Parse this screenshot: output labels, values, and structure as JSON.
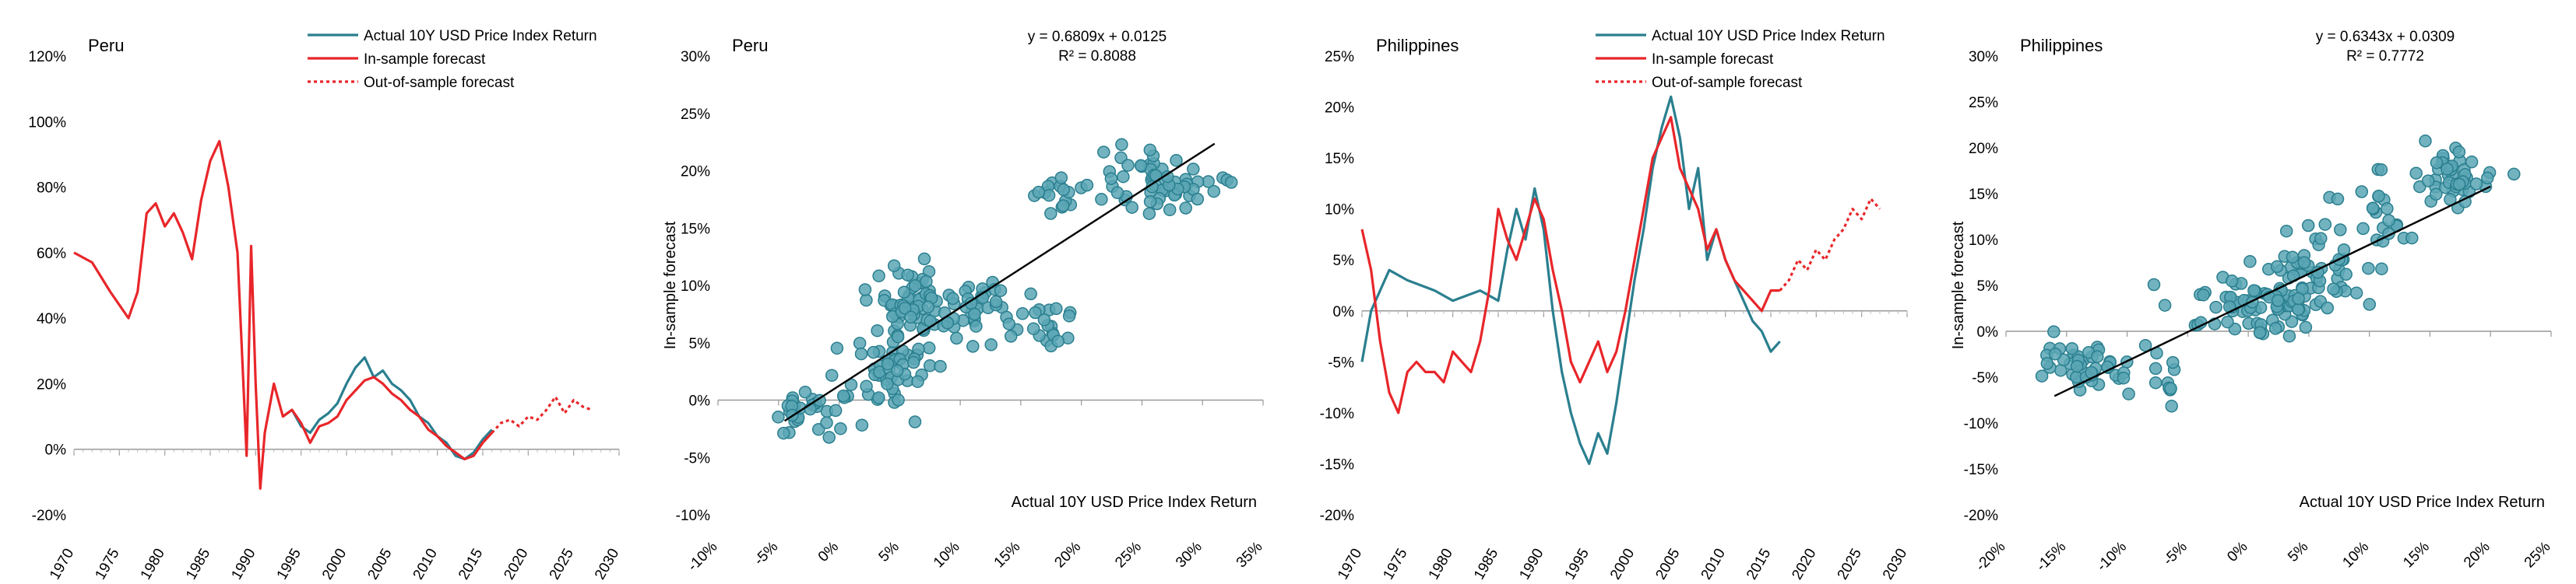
{
  "chart_data": [
    {
      "type": "line",
      "title": "Peru",
      "xlim": [
        1970,
        2030
      ],
      "ylim": [
        -0.2,
        1.2
      ],
      "x_ticks": [
        "1970",
        "1975",
        "1980",
        "1985",
        "1990",
        "1995",
        "2000",
        "2005",
        "2010",
        "2015",
        "2020",
        "2025",
        "2030"
      ],
      "y_ticks": [
        "-20%",
        "0%",
        "20%",
        "40%",
        "60%",
        "80%",
        "100%",
        "120%"
      ],
      "legend": [
        "Actual 10Y USD Price Index Return",
        "In-sample forecast",
        "Out-of-sample forecast"
      ],
      "colors": {
        "actual": "#2a7f8f",
        "insample": "#e8262a",
        "oos": "#e8262a"
      },
      "series": [
        {
          "name": "Actual 10Y USD Price Index Return",
          "values": [
            [
              1993,
              0.1
            ],
            [
              1994,
              0.12
            ],
            [
              1995,
              0.07
            ],
            [
              1996,
              0.05
            ],
            [
              1997,
              0.09
            ],
            [
              1998,
              0.11
            ],
            [
              1999,
              0.14
            ],
            [
              2000,
              0.2
            ],
            [
              2001,
              0.25
            ],
            [
              2002,
              0.28
            ],
            [
              2003,
              0.22
            ],
            [
              2004,
              0.24
            ],
            [
              2005,
              0.2
            ],
            [
              2006,
              0.18
            ],
            [
              2007,
              0.15
            ],
            [
              2008,
              0.1
            ],
            [
              2009,
              0.08
            ],
            [
              2010,
              0.04
            ],
            [
              2011,
              0.02
            ],
            [
              2012,
              -0.02
            ],
            [
              2013,
              -0.03
            ],
            [
              2014,
              -0.01
            ],
            [
              2015,
              0.03
            ],
            [
              2016,
              0.06
            ]
          ]
        },
        {
          "name": "In-sample forecast",
          "values": [
            [
              1970,
              0.6
            ],
            [
              1972,
              0.57
            ],
            [
              1974,
              0.48
            ],
            [
              1976,
              0.4
            ],
            [
              1977,
              0.48
            ],
            [
              1978,
              0.72
            ],
            [
              1979,
              0.75
            ],
            [
              1980,
              0.68
            ],
            [
              1981,
              0.72
            ],
            [
              1982,
              0.66
            ],
            [
              1983,
              0.58
            ],
            [
              1984,
              0.76
            ],
            [
              1985,
              0.88
            ],
            [
              1986,
              0.94
            ],
            [
              1987,
              0.8
            ],
            [
              1988,
              0.6
            ],
            [
              1989,
              -0.02
            ],
            [
              1989.5,
              0.62
            ],
            [
              1990,
              0.2
            ],
            [
              1990.5,
              -0.12
            ],
            [
              1991,
              0.05
            ],
            [
              1992,
              0.2
            ],
            [
              1993,
              0.1
            ],
            [
              1994,
              0.12
            ],
            [
              1995,
              0.08
            ],
            [
              1996,
              0.02
            ],
            [
              1997,
              0.07
            ],
            [
              1998,
              0.08
            ],
            [
              1999,
              0.1
            ],
            [
              2000,
              0.15
            ],
            [
              2001,
              0.18
            ],
            [
              2002,
              0.21
            ],
            [
              2003,
              0.22
            ],
            [
              2004,
              0.2
            ],
            [
              2005,
              0.17
            ],
            [
              2006,
              0.15
            ],
            [
              2007,
              0.12
            ],
            [
              2008,
              0.1
            ],
            [
              2009,
              0.06
            ],
            [
              2010,
              0.04
            ],
            [
              2011,
              0.01
            ],
            [
              2012,
              -0.01
            ],
            [
              2013,
              -0.03
            ],
            [
              2014,
              -0.02
            ],
            [
              2015,
              0.02
            ],
            [
              2016,
              0.05
            ]
          ]
        },
        {
          "name": "Out-of-sample forecast",
          "values": [
            [
              2016,
              0.05
            ],
            [
              2017,
              0.08
            ],
            [
              2018,
              0.09
            ],
            [
              2019,
              0.07
            ],
            [
              2020,
              0.1
            ],
            [
              2021,
              0.09
            ],
            [
              2022,
              0.12
            ],
            [
              2023,
              0.16
            ],
            [
              2024,
              0.11
            ],
            [
              2025,
              0.15
            ],
            [
              2026,
              0.13
            ],
            [
              2027,
              0.12
            ]
          ]
        }
      ]
    },
    {
      "type": "scatter",
      "title": "Peru",
      "equation": "y = 0.6809x + 0.0125",
      "r_squared": "R² = 0.8088",
      "xlabel": "Actual 10Y USD Price Index Return",
      "ylabel": "In-sample forecast",
      "xlim": [
        -0.1,
        0.35
      ],
      "ylim": [
        -0.1,
        0.3
      ],
      "x_ticks": [
        "-10%",
        "-5%",
        "0%",
        "5%",
        "10%",
        "15%",
        "20%",
        "25%",
        "30%",
        "35%"
      ],
      "y_ticks": [
        "-10%",
        "-5%",
        "0%",
        "5%",
        "10%",
        "15%",
        "20%",
        "25%",
        "30%"
      ],
      "trendline": {
        "slope": 0.6809,
        "intercept": 0.0125,
        "x_range": [
          -0.045,
          0.31
        ]
      },
      "clusters": [
        {
          "cx": -0.03,
          "cy": -0.01,
          "sx": 0.015,
          "sy": 0.01,
          "n": 30
        },
        {
          "cx": 0.04,
          "cy": 0.03,
          "sx": 0.02,
          "sy": 0.015,
          "n": 55
        },
        {
          "cx": 0.06,
          "cy": 0.09,
          "sx": 0.015,
          "sy": 0.015,
          "n": 50
        },
        {
          "cx": 0.11,
          "cy": 0.08,
          "sx": 0.02,
          "sy": 0.015,
          "n": 45
        },
        {
          "cx": 0.17,
          "cy": 0.07,
          "sx": 0.015,
          "sy": 0.015,
          "n": 20
        },
        {
          "cx": 0.18,
          "cy": 0.18,
          "sx": 0.01,
          "sy": 0.01,
          "n": 15
        },
        {
          "cx": 0.26,
          "cy": 0.19,
          "sx": 0.025,
          "sy": 0.012,
          "n": 60
        }
      ]
    },
    {
      "type": "line",
      "title": "Philippines",
      "xlim": [
        1970,
        2030
      ],
      "ylim": [
        -0.2,
        0.25
      ],
      "x_ticks": [
        "1970",
        "1975",
        "1980",
        "1985",
        "1990",
        "1995",
        "2000",
        "2005",
        "2010",
        "2015",
        "2020",
        "2025",
        "2030"
      ],
      "y_ticks": [
        "-20%",
        "-15%",
        "-10%",
        "-5%",
        "0%",
        "5%",
        "10%",
        "15%",
        "20%",
        "25%"
      ],
      "legend": [
        "Actual 10Y USD Price Index Return",
        "In-sample forecast",
        "Out-of-sample forecast"
      ],
      "colors": {
        "actual": "#2a7f8f",
        "insample": "#e8262a",
        "oos": "#e8262a"
      },
      "series": [
        {
          "name": "Actual 10Y USD Price Index Return",
          "values": [
            [
              1970,
              -0.05
            ],
            [
              1971,
              0.0
            ],
            [
              1972,
              0.02
            ],
            [
              1973,
              0.04
            ],
            [
              1975,
              0.03
            ],
            [
              1978,
              0.02
            ],
            [
              1980,
              0.01
            ],
            [
              1983,
              0.02
            ],
            [
              1985,
              0.01
            ],
            [
              1986,
              0.06
            ],
            [
              1987,
              0.1
            ],
            [
              1988,
              0.07
            ],
            [
              1989,
              0.12
            ],
            [
              1990,
              0.08
            ],
            [
              1991,
              0.0
            ],
            [
              1992,
              -0.06
            ],
            [
              1993,
              -0.1
            ],
            [
              1994,
              -0.13
            ],
            [
              1995,
              -0.15
            ],
            [
              1996,
              -0.12
            ],
            [
              1997,
              -0.14
            ],
            [
              1998,
              -0.09
            ],
            [
              1999,
              -0.03
            ],
            [
              2000,
              0.03
            ],
            [
              2001,
              0.08
            ],
            [
              2002,
              0.14
            ],
            [
              2003,
              0.18
            ],
            [
              2004,
              0.21
            ],
            [
              2005,
              0.17
            ],
            [
              2006,
              0.1
            ],
            [
              2007,
              0.14
            ],
            [
              2008,
              0.05
            ],
            [
              2009,
              0.08
            ],
            [
              2010,
              0.05
            ],
            [
              2011,
              0.03
            ],
            [
              2012,
              0.01
            ],
            [
              2013,
              -0.01
            ],
            [
              2014,
              -0.02
            ],
            [
              2015,
              -0.04
            ],
            [
              2016,
              -0.03
            ]
          ]
        },
        {
          "name": "In-sample forecast",
          "values": [
            [
              1970,
              0.08
            ],
            [
              1971,
              0.04
            ],
            [
              1972,
              -0.03
            ],
            [
              1973,
              -0.08
            ],
            [
              1974,
              -0.1
            ],
            [
              1975,
              -0.06
            ],
            [
              1976,
              -0.05
            ],
            [
              1977,
              -0.06
            ],
            [
              1978,
              -0.06
            ],
            [
              1979,
              -0.07
            ],
            [
              1980,
              -0.04
            ],
            [
              1981,
              -0.05
            ],
            [
              1982,
              -0.06
            ],
            [
              1983,
              -0.03
            ],
            [
              1984,
              0.02
            ],
            [
              1985,
              0.1
            ],
            [
              1986,
              0.07
            ],
            [
              1987,
              0.05
            ],
            [
              1988,
              0.08
            ],
            [
              1989,
              0.11
            ],
            [
              1990,
              0.09
            ],
            [
              1991,
              0.04
            ],
            [
              1992,
              0.0
            ],
            [
              1993,
              -0.05
            ],
            [
              1994,
              -0.07
            ],
            [
              1995,
              -0.05
            ],
            [
              1996,
              -0.03
            ],
            [
              1997,
              -0.06
            ],
            [
              1998,
              -0.04
            ],
            [
              1999,
              0.0
            ],
            [
              2000,
              0.05
            ],
            [
              2001,
              0.1
            ],
            [
              2002,
              0.15
            ],
            [
              2003,
              0.17
            ],
            [
              2004,
              0.19
            ],
            [
              2005,
              0.14
            ],
            [
              2006,
              0.12
            ],
            [
              2007,
              0.1
            ],
            [
              2008,
              0.06
            ],
            [
              2009,
              0.08
            ],
            [
              2010,
              0.05
            ],
            [
              2011,
              0.03
            ],
            [
              2012,
              0.02
            ],
            [
              2013,
              0.01
            ],
            [
              2014,
              0.0
            ],
            [
              2015,
              0.02
            ],
            [
              2016,
              0.02
            ]
          ]
        },
        {
          "name": "Out-of-sample forecast",
          "values": [
            [
              2016,
              0.02
            ],
            [
              2017,
              0.03
            ],
            [
              2018,
              0.05
            ],
            [
              2019,
              0.04
            ],
            [
              2020,
              0.06
            ],
            [
              2021,
              0.05
            ],
            [
              2022,
              0.07
            ],
            [
              2023,
              0.08
            ],
            [
              2024,
              0.1
            ],
            [
              2025,
              0.09
            ],
            [
              2026,
              0.11
            ],
            [
              2027,
              0.1
            ]
          ]
        }
      ]
    },
    {
      "type": "scatter",
      "title": "Philippines",
      "equation": "y = 0.6343x + 0.0309",
      "r_squared": "R² = 0.7772",
      "xlabel": "Actual 10Y USD Price Index Return",
      "ylabel": "In-sample forecast",
      "xlim": [
        -0.2,
        0.25
      ],
      "ylim": [
        -0.2,
        0.3
      ],
      "x_ticks": [
        "-20%",
        "-15%",
        "-10%",
        "-5%",
        "0%",
        "5%",
        "10%",
        "15%",
        "20%",
        "25%"
      ],
      "y_ticks": [
        "-20%",
        "-15%",
        "-10%",
        "-5%",
        "0%",
        "5%",
        "10%",
        "15%",
        "20%",
        "25%",
        "30%"
      ],
      "trendline": {
        "slope": 0.6343,
        "intercept": 0.0309,
        "x_range": [
          -0.16,
          0.2
        ]
      },
      "clusters": [
        {
          "cx": -0.13,
          "cy": -0.04,
          "sx": 0.02,
          "sy": 0.015,
          "n": 45
        },
        {
          "cx": -0.07,
          "cy": -0.05,
          "sx": 0.015,
          "sy": 0.015,
          "n": 12
        },
        {
          "cx": 0.0,
          "cy": 0.03,
          "sx": 0.025,
          "sy": 0.02,
          "n": 55
        },
        {
          "cx": 0.05,
          "cy": 0.06,
          "sx": 0.03,
          "sy": 0.025,
          "n": 75
        },
        {
          "cx": 0.11,
          "cy": 0.13,
          "sx": 0.015,
          "sy": 0.02,
          "n": 20
        },
        {
          "cx": 0.17,
          "cy": 0.17,
          "sx": 0.02,
          "sy": 0.015,
          "n": 45
        }
      ]
    }
  ]
}
